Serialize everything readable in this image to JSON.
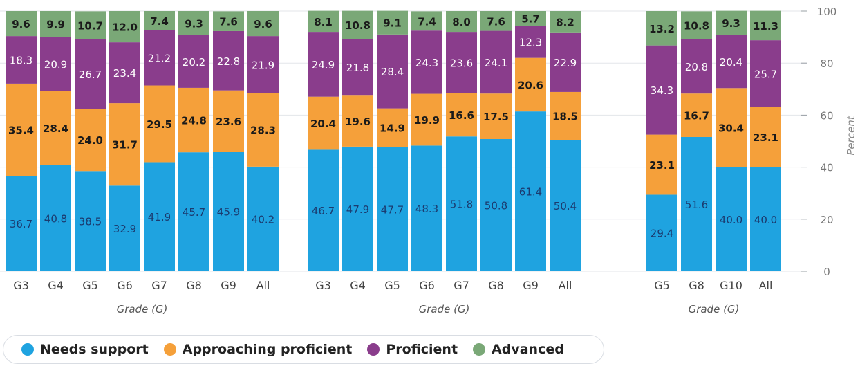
{
  "chart_data": {
    "type": "bar",
    "stacked": true,
    "yaxis": {
      "label": "Percent",
      "ylim": [
        0,
        100
      ],
      "ticks": [
        "0",
        "20",
        "40",
        "60",
        "80",
        "100"
      ],
      "position": "right"
    },
    "legend": {
      "placement": "bottom-left",
      "entries": [
        {
          "name": "Needs support",
          "color": "#1fa3e0"
        },
        {
          "name": "Approaching proficient",
          "color": "#f5a03a"
        },
        {
          "name": "Proficient",
          "color": "#8a3d8c"
        },
        {
          "name": "Advanced",
          "color": "#7aa877"
        }
      ]
    },
    "panels": [
      {
        "xlabel": "Grade (G)",
        "categories": [
          "G3",
          "G4",
          "G5",
          "G6",
          "G7",
          "G8",
          "G9",
          "All"
        ],
        "series": [
          {
            "name": "Needs support",
            "values": [
              36.7,
              40.8,
              38.5,
              32.9,
              41.9,
              45.7,
              45.9,
              40.2
            ]
          },
          {
            "name": "Approaching proficient",
            "values": [
              35.4,
              28.4,
              24.0,
              31.7,
              29.5,
              24.8,
              23.6,
              28.3
            ]
          },
          {
            "name": "Proficient",
            "values": [
              18.3,
              20.9,
              26.7,
              23.4,
              21.2,
              20.2,
              22.8,
              21.9
            ]
          },
          {
            "name": "Advanced",
            "values": [
              9.6,
              9.9,
              10.7,
              12.0,
              7.4,
              9.3,
              7.6,
              9.6
            ]
          }
        ]
      },
      {
        "xlabel": "Grade (G)",
        "categories": [
          "G3",
          "G4",
          "G5",
          "G6",
          "G7",
          "G8",
          "G9",
          "All"
        ],
        "series": [
          {
            "name": "Needs support",
            "values": [
              46.7,
              47.9,
              47.7,
              48.3,
              51.8,
              50.8,
              61.4,
              50.4
            ]
          },
          {
            "name": "Approaching proficient",
            "values": [
              20.4,
              19.6,
              14.9,
              19.9,
              16.6,
              17.5,
              20.6,
              18.5
            ]
          },
          {
            "name": "Proficient",
            "values": [
              24.9,
              21.8,
              28.4,
              24.3,
              23.6,
              24.1,
              12.3,
              22.9
            ]
          },
          {
            "name": "Advanced",
            "values": [
              8.1,
              10.8,
              9.1,
              7.4,
              8.0,
              7.6,
              5.7,
              8.2
            ]
          }
        ]
      },
      {
        "xlabel": "Grade (G)",
        "categories": [
          "G5",
          "G8",
          "G10",
          "All"
        ],
        "series": [
          {
            "name": "Needs support",
            "values": [
              29.4,
              51.6,
              40.0,
              40.0
            ]
          },
          {
            "name": "Approaching proficient",
            "values": [
              23.1,
              16.7,
              30.4,
              23.1
            ]
          },
          {
            "name": "Proficient",
            "values": [
              34.3,
              20.8,
              20.4,
              25.7
            ]
          },
          {
            "name": "Advanced",
            "values": [
              13.2,
              10.8,
              9.3,
              11.3
            ]
          }
        ]
      }
    ]
  }
}
